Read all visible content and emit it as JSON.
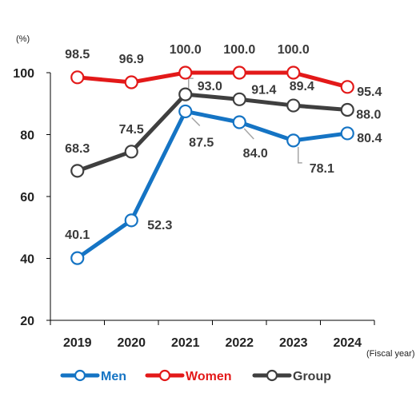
{
  "chart_data": {
    "type": "line",
    "categories": [
      "2019",
      "2020",
      "2021",
      "2022",
      "2023",
      "2024"
    ],
    "ylim": [
      20,
      100
    ],
    "yticks": [
      20,
      40,
      60,
      80,
      100
    ],
    "y_unit": "(%)",
    "x_unit": "(Fiscal year)",
    "legend_position": "bottom",
    "series": [
      {
        "name": "Men",
        "color": "#1574c4",
        "values": [
          40.1,
          52.3,
          87.5,
          84.0,
          78.1,
          80.4
        ],
        "labels": [
          "40.1",
          "52.3",
          "87.5",
          "84.0",
          "78.1",
          "80.4"
        ]
      },
      {
        "name": "Women",
        "color": "#e31919",
        "values": [
          98.5,
          96.9,
          100.0,
          100.0,
          100.0,
          95.4
        ],
        "labels": [
          "98.5",
          "96.9",
          "100.0",
          "100.0",
          "100.0",
          "95.4"
        ]
      },
      {
        "name": "Group",
        "color": "#3f3f3f",
        "values": [
          68.3,
          74.5,
          93.0,
          91.4,
          89.4,
          88.0
        ],
        "labels": [
          "68.3",
          "74.5",
          "93.0",
          "91.4",
          "89.4",
          "88.0"
        ]
      }
    ]
  }
}
